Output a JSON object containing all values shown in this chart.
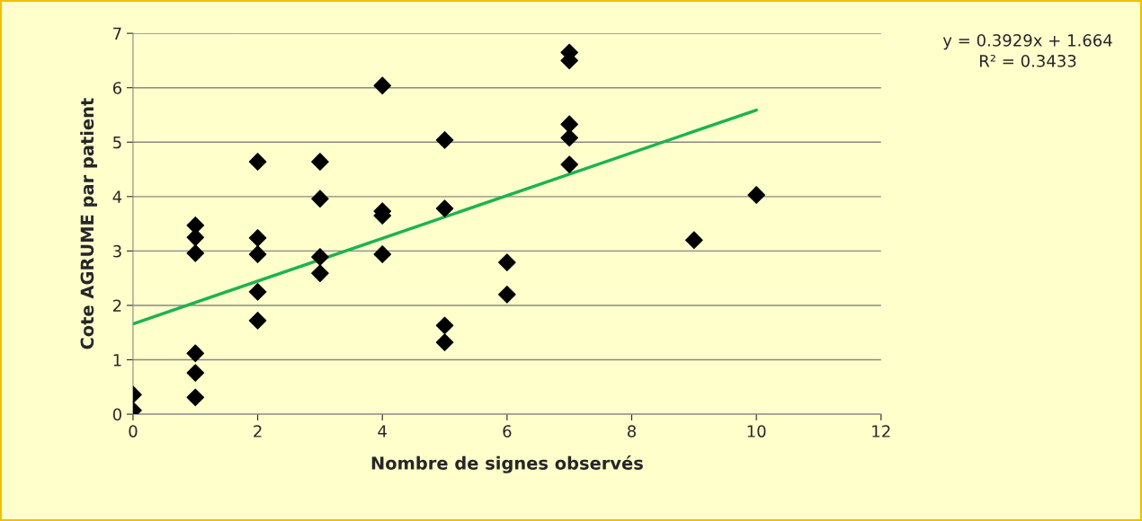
{
  "chart_data": {
    "type": "scatter",
    "xlabel": "Nombre de signes observés",
    "ylabel": "Cote AGRUME par patient",
    "annotations": [
      "y = 0.3929x + 1.664\nR² = 0.3433"
    ],
    "series": [
      {
        "color": "#000000",
        "marker": "diamond",
        "x": [
          0,
          0,
          1,
          1,
          1,
          1,
          1,
          1,
          2,
          2,
          2,
          2,
          2,
          3,
          3,
          3,
          3,
          4,
          4,
          4,
          4,
          5,
          5,
          5,
          5,
          6,
          6,
          7,
          7,
          7,
          7,
          7,
          9,
          10
        ],
        "values": [
          0.36,
          0.07,
          3.47,
          3.25,
          2.96,
          1.12,
          0.76,
          0.31,
          4.64,
          3.24,
          2.94,
          2.25,
          1.72,
          4.64,
          3.96,
          2.89,
          2.59,
          6.04,
          3.73,
          3.65,
          2.94,
          5.04,
          3.78,
          1.63,
          1.32,
          2.79,
          2.2,
          6.65,
          6.5,
          5.33,
          5.08,
          4.59,
          3.2,
          4.03
        ]
      },
      {
        "type": "line",
        "color": "#1db34f",
        "marker": "none",
        "x": [
          0,
          10
        ],
        "values": [
          1.66,
          5.59
        ]
      }
    ],
    "xlim": [
      0,
      12
    ],
    "xticks": [
      0,
      2,
      4,
      6,
      8,
      10,
      12
    ],
    "ylim": [
      0,
      7
    ],
    "yticks": [
      0,
      1,
      2,
      3,
      4,
      5,
      6,
      7
    ],
    "grid": "y",
    "legend": false
  }
}
